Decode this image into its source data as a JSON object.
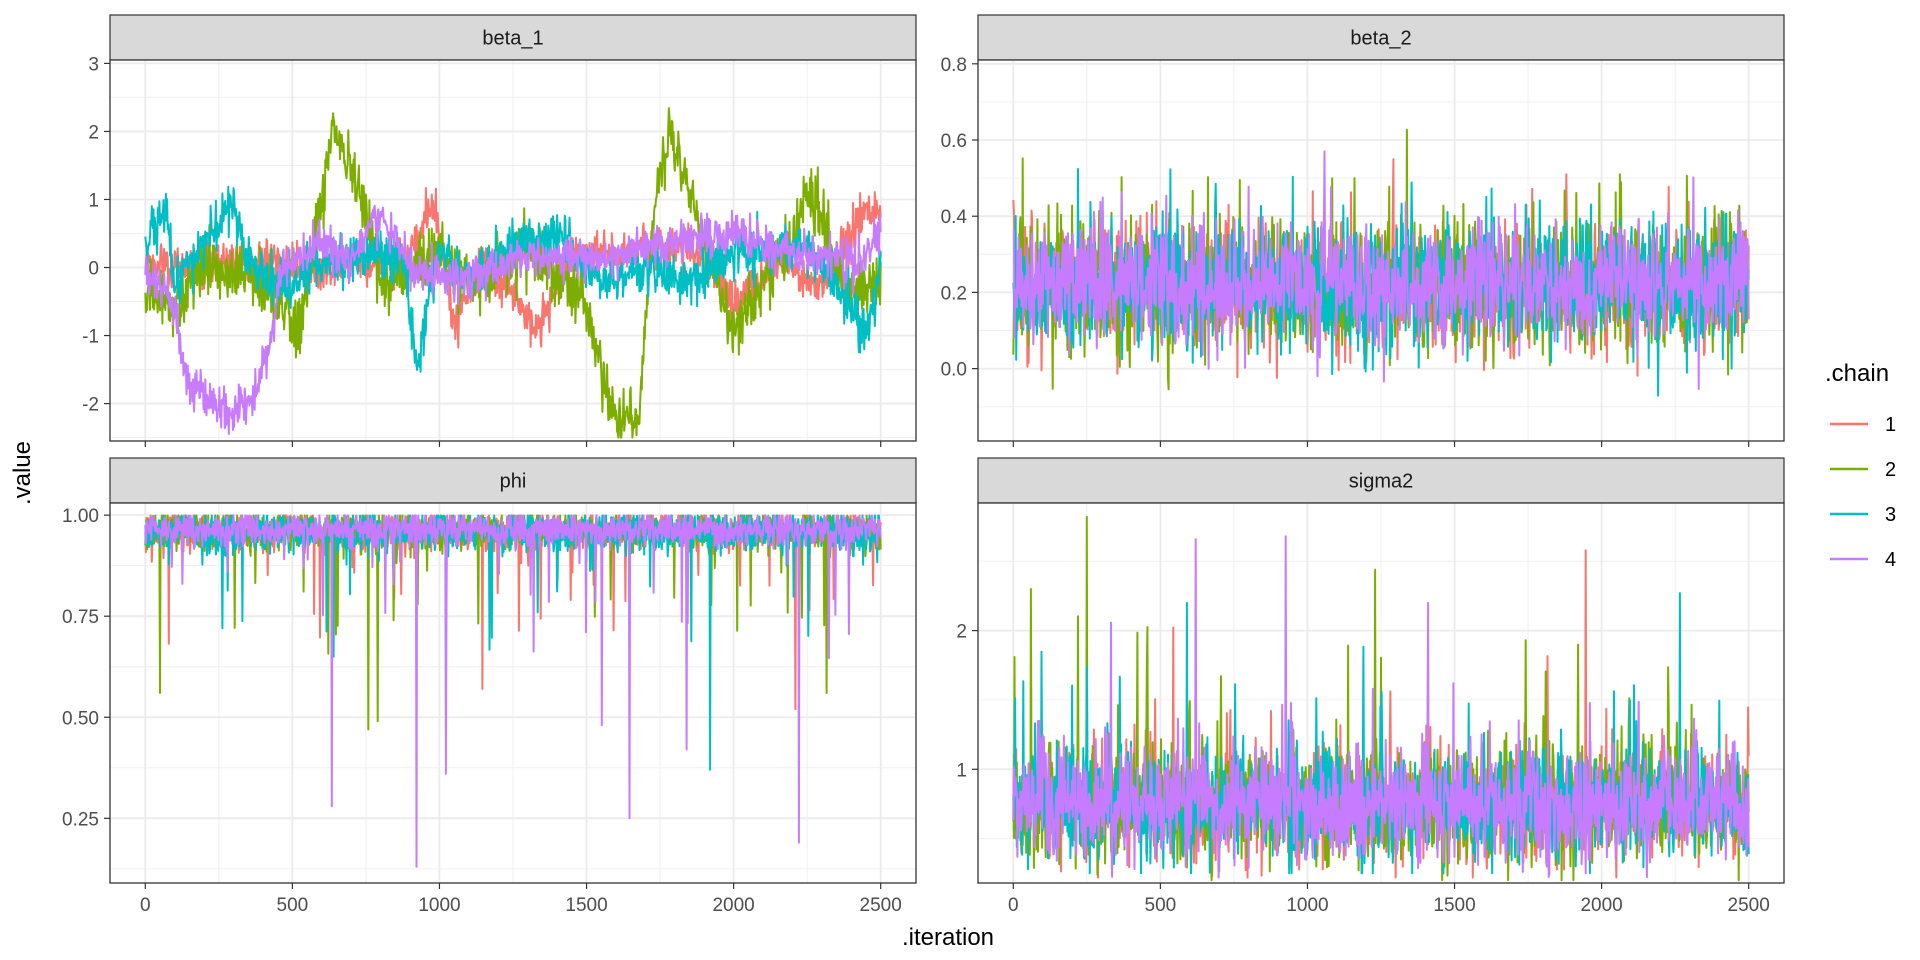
{
  "chart_data": {
    "type": "line",
    "xlabel": ".iteration",
    "ylabel": ".value",
    "legend": {
      "title": ".chain",
      "placement": "right"
    },
    "grid": true,
    "series_colors": {
      "1": "#F8766D",
      "2": "#7CAE00",
      "3": "#00BFC4",
      "4": "#C77CFF"
    },
    "chains": [
      "1",
      "2",
      "3",
      "4"
    ],
    "xlim": [
      -120,
      2620
    ],
    "x_ticks": [
      0,
      500,
      1000,
      1500,
      2000,
      2500
    ],
    "x_tick_labels": [
      "0",
      "500",
      "1000",
      "1500",
      "2000",
      "2500"
    ],
    "n_iterations": 2500,
    "panels": [
      {
        "name": "beta_1",
        "ylim": [
          -2.55,
          3.05
        ],
        "y_ticks": [
          -2,
          -1,
          0,
          1,
          2,
          3
        ],
        "y_tick_labels": [
          "-2",
          "-1",
          "0",
          "1",
          "2",
          "3"
        ],
        "series": [
          {
            "chain": "1",
            "level_knots": [
              [
                0,
                0.0
              ],
              [
                200,
                0.05
              ],
              [
                420,
                0.1
              ],
              [
                600,
                0.0
              ],
              [
                900,
                0.2
              ],
              [
                980,
                1.0
              ],
              [
                1050,
                -0.9
              ],
              [
                1150,
                0.1
              ],
              [
                1330,
                -0.9
              ],
              [
                1450,
                0.2
              ],
              [
                1850,
                0.3
              ],
              [
                2000,
                -0.5
              ],
              [
                2150,
                0.1
              ],
              [
                2300,
                -0.3
              ],
              [
                2450,
                0.9
              ],
              [
                2500,
                0.8
              ]
            ],
            "noise": 0.16,
            "spike_prob": 0,
            "spike_size": 0,
            "range": [
              -1.6,
              1.4
            ]
          },
          {
            "chain": "2",
            "level_knots": [
              [
                0,
                -0.3
              ],
              [
                80,
                -0.6
              ],
              [
                220,
                0.1
              ],
              [
                450,
                -0.4
              ],
              [
                520,
                -1.0
              ],
              [
                580,
                0.5
              ],
              [
                640,
                2.0
              ],
              [
                720,
                1.2
              ],
              [
                800,
                -0.2
              ],
              [
                1000,
                0.2
              ],
              [
                1100,
                -0.3
              ],
              [
                1300,
                0.3
              ],
              [
                1500,
                -0.6
              ],
              [
                1600,
                -2.3
              ],
              [
                1680,
                -2.2
              ],
              [
                1720,
                0.5
              ],
              [
                1780,
                2.0
              ],
              [
                1860,
                1.0
              ],
              [
                1920,
                0.1
              ],
              [
                2000,
                -1.0
              ],
              [
                2100,
                -0.2
              ],
              [
                2200,
                0.4
              ],
              [
                2250,
                1.1
              ],
              [
                2330,
                0.3
              ],
              [
                2400,
                -0.4
              ],
              [
                2500,
                -0.2
              ]
            ],
            "noise": 0.22,
            "spike_prob": 0,
            "spike_size": 0,
            "range": [
              -2.5,
              2.75
            ]
          },
          {
            "chain": "3",
            "level_knots": [
              [
                0,
                0.3
              ],
              [
                70,
                0.9
              ],
              [
                100,
                -0.3
              ],
              [
                180,
                0.2
              ],
              [
                300,
                1.0
              ],
              [
                350,
                0.1
              ],
              [
                450,
                -0.3
              ],
              [
                600,
                0.1
              ],
              [
                800,
                0.3
              ],
              [
                880,
                0.1
              ],
              [
                920,
                -1.5
              ],
              [
                1000,
                0.3
              ],
              [
                1100,
                -0.2
              ],
              [
                1250,
                0.4
              ],
              [
                1400,
                0.5
              ],
              [
                1550,
                -0.2
              ],
              [
                1700,
                0.0
              ],
              [
                1850,
                -0.2
              ],
              [
                2000,
                0.2
              ],
              [
                2200,
                0.3
              ],
              [
                2300,
                0.1
              ],
              [
                2450,
                -1.0
              ],
              [
                2500,
                0.0
              ]
            ],
            "noise": 0.18,
            "spike_prob": 0,
            "spike_size": 0,
            "range": [
              -1.8,
              1.25
            ]
          },
          {
            "chain": "4",
            "level_knots": [
              [
                0,
                0.0
              ],
              [
                100,
                -0.6
              ],
              [
                140,
                -1.7
              ],
              [
                280,
                -2.1
              ],
              [
                360,
                -2.0
              ],
              [
                420,
                -1.2
              ],
              [
                460,
                0.0
              ],
              [
                600,
                0.4
              ],
              [
                700,
                0.0
              ],
              [
                780,
                0.8
              ],
              [
                850,
                0.5
              ],
              [
                900,
                0.0
              ],
              [
                1100,
                -0.2
              ],
              [
                1300,
                0.2
              ],
              [
                1550,
                0.1
              ],
              [
                1700,
                0.3
              ],
              [
                2000,
                0.5
              ],
              [
                2200,
                0.2
              ],
              [
                2450,
                0.1
              ],
              [
                2500,
                0.6
              ]
            ],
            "noise": 0.15,
            "spike_prob": 0,
            "spike_size": 0,
            "range": [
              -2.45,
              1.0
            ]
          }
        ]
      },
      {
        "name": "beta_2",
        "ylim": [
          -0.19,
          0.81
        ],
        "y_ticks": [
          0.0,
          0.2,
          0.4,
          0.6,
          0.8
        ],
        "y_tick_labels": [
          "0.0",
          "0.2",
          "0.4",
          "0.6",
          "0.8"
        ],
        "series": [
          {
            "chain": "1",
            "level_knots": [
              [
                0,
                0.22
              ],
              [
                2500,
                0.22
              ]
            ],
            "noise": 0.085,
            "spike_prob": 0.01,
            "spike_size": 0.18,
            "range": [
              -0.1,
              0.55
            ]
          },
          {
            "chain": "2",
            "level_knots": [
              [
                0,
                0.22
              ],
              [
                2500,
                0.22
              ]
            ],
            "noise": 0.09,
            "spike_prob": 0.012,
            "spike_size": 0.2,
            "range": [
              -0.15,
              0.76
            ]
          },
          {
            "chain": "3",
            "level_knots": [
              [
                0,
                0.22
              ],
              [
                2500,
                0.22
              ]
            ],
            "noise": 0.085,
            "spike_prob": 0.01,
            "spike_size": 0.18,
            "range": [
              -0.12,
              0.6
            ]
          },
          {
            "chain": "4",
            "level_knots": [
              [
                0,
                0.22
              ],
              [
                2500,
                0.22
              ]
            ],
            "noise": 0.08,
            "spike_prob": 0.01,
            "spike_size": 0.18,
            "range": [
              -0.1,
              0.64
            ]
          }
        ]
      },
      {
        "name": "phi",
        "ylim": [
          0.09,
          1.03
        ],
        "y_ticks": [
          0.25,
          0.5,
          0.75,
          1.0
        ],
        "y_tick_labels": [
          "0.25",
          "0.50",
          "0.75",
          "1.00"
        ],
        "series": [
          {
            "chain": "1",
            "level_knots": [
              [
                0,
                0.96
              ],
              [
                2500,
                0.96
              ]
            ],
            "noise": 0.025,
            "spike_prob": 0.02,
            "spike_size": -0.18,
            "range": [
              0.57,
              0.999
            ]
          },
          {
            "chain": "2",
            "level_knots": [
              [
                0,
                0.96
              ],
              [
                2500,
                0.96
              ]
            ],
            "noise": 0.025,
            "spike_prob": 0.02,
            "spike_size": -0.2,
            "range": [
              0.47,
              0.999
            ]
          },
          {
            "chain": "3",
            "level_knots": [
              [
                0,
                0.96
              ],
              [
                2500,
                0.96
              ]
            ],
            "noise": 0.028,
            "spike_prob": 0.02,
            "spike_size": -0.2,
            "range": [
              0.37,
              0.999
            ]
          },
          {
            "chain": "4",
            "level_knots": [
              [
                0,
                0.965
              ],
              [
                2500,
                0.965
              ]
            ],
            "noise": 0.022,
            "spike_prob": 0.02,
            "spike_size": -0.2,
            "range": [
              0.13,
              0.999
            ]
          }
        ],
        "extreme_dips": [
          {
            "chain": "2",
            "x": 50,
            "y": 0.56
          },
          {
            "chain": "2",
            "x": 758,
            "y": 0.47
          },
          {
            "chain": "2",
            "x": 790,
            "y": 0.49
          },
          {
            "chain": "2",
            "x": 2315,
            "y": 0.56
          },
          {
            "chain": "1",
            "x": 1145,
            "y": 0.57
          },
          {
            "chain": "1",
            "x": 2210,
            "y": 0.52
          },
          {
            "chain": "3",
            "x": 1920,
            "y": 0.37
          },
          {
            "chain": "3",
            "x": 640,
            "y": 0.65
          },
          {
            "chain": "4",
            "x": 633,
            "y": 0.28
          },
          {
            "chain": "4",
            "x": 922,
            "y": 0.13
          },
          {
            "chain": "4",
            "x": 1022,
            "y": 0.36
          },
          {
            "chain": "4",
            "x": 1552,
            "y": 0.48
          },
          {
            "chain": "4",
            "x": 1645,
            "y": 0.25
          },
          {
            "chain": "4",
            "x": 1840,
            "y": 0.42
          },
          {
            "chain": "4",
            "x": 2222,
            "y": 0.19
          }
        ]
      },
      {
        "name": "sigma2",
        "ylim": [
          0.18,
          2.92
        ],
        "y_ticks": [
          1,
          2
        ],
        "y_tick_labels": [
          "1",
          "2"
        ],
        "series": [
          {
            "chain": "1",
            "level_knots": [
              [
                0,
                0.75
              ],
              [
                2500,
                0.75
              ]
            ],
            "noise": 0.2,
            "spike_prob": 0.02,
            "spike_size": 0.7,
            "range": [
              0.22,
              2.58
            ]
          },
          {
            "chain": "2",
            "level_knots": [
              [
                0,
                0.75
              ],
              [
                2500,
                0.75
              ]
            ],
            "noise": 0.22,
            "spike_prob": 0.02,
            "spike_size": 0.75,
            "range": [
              0.2,
              2.82
            ]
          },
          {
            "chain": "3",
            "level_knots": [
              [
                0,
                0.75
              ],
              [
                2500,
                0.75
              ]
            ],
            "noise": 0.2,
            "spike_prob": 0.02,
            "spike_size": 0.7,
            "range": [
              0.25,
              2.27
            ]
          },
          {
            "chain": "4",
            "level_knots": [
              [
                0,
                0.75
              ],
              [
                2500,
                0.75
              ]
            ],
            "noise": 0.2,
            "spike_prob": 0.02,
            "spike_size": 0.7,
            "range": [
              0.22,
              2.68
            ]
          }
        ],
        "extreme_spikes": [
          {
            "chain": "2",
            "x": 250,
            "y": 2.82
          },
          {
            "chain": "2",
            "x": 60,
            "y": 2.3
          },
          {
            "chain": "2",
            "x": 1230,
            "y": 2.44
          },
          {
            "chain": "1",
            "x": 1945,
            "y": 2.58
          },
          {
            "chain": "4",
            "x": 620,
            "y": 2.66
          },
          {
            "chain": "4",
            "x": 925,
            "y": 2.68
          },
          {
            "chain": "3",
            "x": 590,
            "y": 2.2
          },
          {
            "chain": "3",
            "x": 2265,
            "y": 2.27
          },
          {
            "chain": "4",
            "x": 1410,
            "y": 2.2
          }
        ]
      }
    ]
  }
}
